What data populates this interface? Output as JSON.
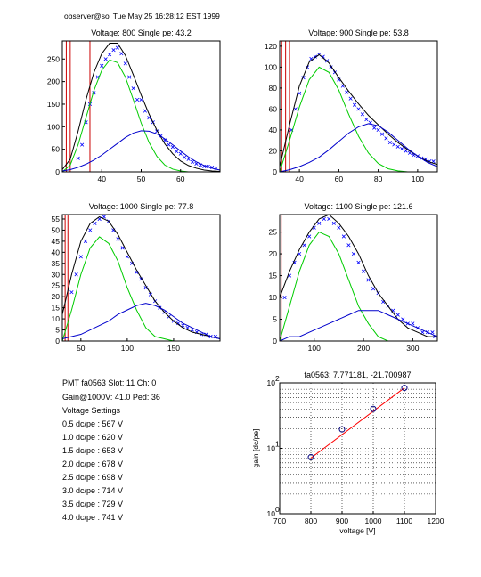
{
  "header": "observer@sol  Tue May 25 16:28:12 EST 1999",
  "colors": {
    "data": "#0000ff",
    "fit_total": "#000000",
    "fit_single": "#00cc00",
    "fit_double": "#0000cc",
    "pedestal": "#cc0000",
    "gain_line": "#ff0000",
    "gain_points": "#000080"
  },
  "chart_data": [
    {
      "type": "scatter",
      "title": "Voltage: 800 Single pe: 43.2",
      "xlim": [
        30,
        70
      ],
      "ylim": [
        0,
        290
      ],
      "xticks": [
        40,
        50,
        60
      ],
      "yticks": [
        0,
        50,
        100,
        150,
        200,
        250
      ],
      "pedestal_x": [
        31,
        32,
        37
      ],
      "series": [
        {
          "name": "",
          "style": "data",
          "x": [
            34,
            35,
            36,
            37,
            38,
            39,
            40,
            41,
            42,
            43,
            44,
            45,
            46,
            47,
            48,
            49,
            50,
            51,
            52,
            53,
            54,
            55,
            56,
            57,
            58,
            59,
            60,
            61,
            62,
            63,
            64,
            65,
            66,
            67,
            68,
            69
          ],
          "y": [
            30,
            60,
            110,
            150,
            175,
            210,
            235,
            250,
            260,
            270,
            275,
            262,
            240,
            210,
            185,
            160,
            160,
            135,
            120,
            110,
            90,
            80,
            70,
            60,
            55,
            45,
            40,
            32,
            28,
            22,
            18,
            15,
            12,
            12,
            10,
            8
          ]
        },
        {
          "name": "",
          "style": "fit_total",
          "x": [
            30,
            32,
            34,
            36,
            38,
            40,
            42,
            44,
            46,
            48,
            50,
            52,
            54,
            56,
            58,
            60,
            62,
            64,
            66,
            68,
            70
          ],
          "y": [
            5,
            28,
            90,
            160,
            220,
            262,
            285,
            285,
            258,
            215,
            170,
            128,
            92,
            62,
            40,
            24,
            14,
            8,
            4,
            2,
            1
          ]
        },
        {
          "name": "",
          "style": "fit_single",
          "x": [
            30,
            32,
            34,
            36,
            38,
            40,
            42,
            44,
            46,
            48,
            50,
            52,
            54,
            56,
            58,
            60,
            62,
            64,
            66,
            68,
            70
          ],
          "y": [
            0,
            15,
            60,
            120,
            180,
            225,
            248,
            242,
            210,
            160,
            108,
            65,
            34,
            15,
            6,
            2,
            0,
            0,
            0,
            0,
            0
          ]
        },
        {
          "name": "",
          "style": "fit_double",
          "x": [
            30,
            32,
            34,
            36,
            38,
            40,
            42,
            44,
            46,
            48,
            50,
            52,
            54,
            56,
            58,
            60,
            62,
            64,
            66,
            68,
            70
          ],
          "y": [
            2,
            5,
            10,
            17,
            26,
            37,
            50,
            63,
            76,
            86,
            91,
            90,
            84,
            73,
            60,
            46,
            33,
            22,
            14,
            8,
            4
          ]
        }
      ]
    },
    {
      "type": "scatter",
      "title": "Voltage: 900 Single pe: 53.8",
      "xlim": [
        30,
        110
      ],
      "ylim": [
        0,
        125
      ],
      "xticks": [
        40,
        60,
        80,
        100
      ],
      "yticks": [
        0,
        20,
        40,
        60,
        80,
        100,
        120
      ],
      "pedestal_x": [
        31,
        33,
        35
      ],
      "series": [
        {
          "name": "",
          "style": "data",
          "x": [
            36,
            38,
            40,
            42,
            44,
            46,
            48,
            50,
            52,
            54,
            56,
            58,
            60,
            62,
            64,
            66,
            68,
            70,
            72,
            74,
            76,
            78,
            80,
            82,
            84,
            86,
            88,
            90,
            92,
            94,
            96,
            98,
            100,
            102,
            104,
            106,
            108
          ],
          "y": [
            40,
            60,
            75,
            90,
            100,
            108,
            110,
            112,
            110,
            106,
            100,
            95,
            88,
            82,
            76,
            70,
            64,
            60,
            55,
            50,
            47,
            42,
            40,
            36,
            32,
            28,
            26,
            24,
            22,
            20,
            18,
            16,
            15,
            13,
            12,
            10,
            10
          ]
        },
        {
          "name": "",
          "style": "fit_total",
          "x": [
            30,
            35,
            40,
            45,
            50,
            55,
            60,
            65,
            70,
            75,
            80,
            85,
            90,
            95,
            100,
            105,
            110
          ],
          "y": [
            5,
            45,
            82,
            105,
            112,
            104,
            90,
            77,
            65,
            54,
            45,
            36,
            28,
            21,
            15,
            10,
            7
          ]
        },
        {
          "name": "",
          "style": "fit_single",
          "x": [
            30,
            35,
            40,
            45,
            50,
            55,
            60,
            65,
            70,
            75,
            80,
            85,
            90,
            95,
            100,
            105,
            110
          ],
          "y": [
            0,
            30,
            62,
            88,
            100,
            95,
            78,
            55,
            34,
            18,
            8,
            3,
            1,
            0,
            0,
            0,
            0
          ]
        },
        {
          "name": "",
          "style": "fit_double",
          "x": [
            30,
            35,
            40,
            45,
            50,
            55,
            60,
            65,
            70,
            75,
            80,
            85,
            90,
            95,
            100,
            105,
            110
          ],
          "y": [
            0,
            2,
            5,
            9,
            14,
            21,
            29,
            37,
            43,
            46,
            44,
            38,
            30,
            22,
            15,
            9,
            5
          ]
        }
      ]
    },
    {
      "type": "scatter",
      "title": "Voltage: 1000 Single pe: 77.8",
      "xlim": [
        30,
        200
      ],
      "ylim": [
        0,
        57
      ],
      "xticks": [
        50,
        100,
        150
      ],
      "yticks": [
        0,
        5,
        10,
        15,
        20,
        25,
        30,
        35,
        40,
        45,
        50,
        55
      ],
      "pedestal_x": [
        33,
        36
      ],
      "series": [
        {
          "name": "",
          "style": "data",
          "x": [
            40,
            45,
            50,
            55,
            60,
            65,
            70,
            75,
            80,
            85,
            90,
            95,
            100,
            105,
            110,
            115,
            120,
            125,
            130,
            135,
            140,
            145,
            150,
            155,
            160,
            165,
            170,
            175,
            180,
            185,
            190,
            195
          ],
          "y": [
            22,
            30,
            38,
            45,
            50,
            53,
            55,
            56,
            54,
            50,
            46,
            42,
            38,
            35,
            31,
            28,
            24,
            21,
            18,
            15,
            13,
            11,
            9,
            8,
            7,
            6,
            5,
            4,
            3,
            3,
            2,
            2
          ]
        },
        {
          "name": "",
          "style": "fit_total",
          "x": [
            30,
            40,
            50,
            60,
            70,
            80,
            90,
            100,
            110,
            120,
            130,
            140,
            150,
            160,
            170,
            180,
            190,
            200
          ],
          "y": [
            12,
            30,
            45,
            53,
            56,
            54,
            48,
            40,
            32,
            25,
            18,
            13,
            9,
            6,
            4,
            3,
            2,
            1
          ]
        },
        {
          "name": "",
          "style": "fit_single",
          "x": [
            30,
            40,
            50,
            60,
            70,
            80,
            90,
            100,
            110,
            120,
            130,
            140,
            150,
            160,
            170,
            180,
            190,
            200
          ],
          "y": [
            0,
            14,
            30,
            42,
            47,
            44,
            36,
            24,
            14,
            6,
            2,
            1,
            0,
            0,
            0,
            0,
            0,
            0
          ]
        },
        {
          "name": "",
          "style": "fit_double",
          "x": [
            30,
            40,
            50,
            60,
            70,
            80,
            90,
            100,
            110,
            120,
            130,
            140,
            150,
            160,
            170,
            180,
            190,
            200
          ],
          "y": [
            1,
            2,
            3,
            5,
            7,
            9,
            12,
            14,
            16,
            17,
            16,
            14,
            11,
            8,
            6,
            4,
            2,
            1
          ]
        }
      ]
    },
    {
      "type": "scatter",
      "title": "Voltage: 1100 Single pe: 121.6",
      "xlim": [
        30,
        350
      ],
      "ylim": [
        0,
        29
      ],
      "xticks": [
        100,
        200,
        300
      ],
      "yticks": [
        0,
        5,
        10,
        15,
        20,
        25
      ],
      "pedestal_x": [
        33
      ],
      "series": [
        {
          "name": "",
          "style": "data",
          "x": [
            40,
            50,
            60,
            70,
            80,
            90,
            100,
            110,
            120,
            130,
            140,
            150,
            160,
            170,
            180,
            190,
            200,
            210,
            220,
            230,
            240,
            250,
            260,
            270,
            280,
            290,
            300,
            310,
            320,
            330,
            340,
            345
          ],
          "y": [
            10,
            15,
            18,
            20,
            22,
            24,
            26,
            27,
            28,
            28,
            27,
            26,
            24,
            22,
            20,
            18,
            16,
            14,
            12,
            11,
            9,
            8,
            7,
            6,
            5,
            4,
            4,
            3,
            2,
            2,
            2,
            1
          ]
        },
        {
          "name": "",
          "style": "fit_total",
          "x": [
            30,
            50,
            70,
            90,
            110,
            130,
            150,
            170,
            190,
            210,
            230,
            250,
            270,
            290,
            310,
            330,
            350
          ],
          "y": [
            10,
            16,
            21,
            25,
            28,
            29,
            27,
            24,
            20,
            15,
            11,
            8,
            5,
            3,
            2,
            1,
            1
          ]
        },
        {
          "name": "",
          "style": "fit_single",
          "x": [
            30,
            50,
            70,
            90,
            110,
            130,
            150,
            170,
            190,
            210,
            230,
            250,
            270,
            290,
            310,
            330,
            350
          ],
          "y": [
            0,
            8,
            16,
            22,
            25,
            24,
            20,
            14,
            8,
            4,
            1,
            0,
            0,
            0,
            0,
            0,
            0
          ]
        },
        {
          "name": "",
          "style": "fit_double",
          "x": [
            30,
            50,
            70,
            90,
            110,
            130,
            150,
            170,
            190,
            210,
            230,
            250,
            270,
            290,
            310,
            330,
            350
          ],
          "y": [
            0,
            1,
            1,
            2,
            3,
            4,
            5,
            6,
            7,
            7,
            7,
            6,
            5,
            4,
            3,
            2,
            1
          ]
        }
      ]
    },
    {
      "type": "line",
      "title": "fa0563: 7.771181, -21.700987",
      "xlabel": "voltage [V]",
      "ylabel": "gain [dc/pe]",
      "scale_y": "log",
      "xlim": [
        700,
        1200
      ],
      "ylim": [
        1,
        100
      ],
      "xticks": [
        700,
        800,
        900,
        1000,
        1100,
        1200
      ],
      "yticks": [
        1,
        10,
        100
      ],
      "yticklabels": [
        "10",
        "10",
        "10"
      ],
      "ytick_exponents": [
        "0",
        "1",
        "2"
      ],
      "grid": true,
      "series": [
        {
          "name": "",
          "style": "fit",
          "x": [
            800,
            1100
          ],
          "y": [
            7.1,
            84.0
          ]
        },
        {
          "name": "",
          "style": "points",
          "x": [
            800,
            900,
            1000,
            1100
          ],
          "y": [
            7.3,
            19.5,
            40.0,
            84.0
          ]
        }
      ]
    }
  ],
  "info": {
    "pmt_line": "PMT fa0563 Slot: 11 Ch: 0",
    "gain_line": "Gain@1000V: 41.0 Ped: 36",
    "settings_heading": "Voltage Settings",
    "settings": [
      "0.5 dc/pe : 567 V",
      "1.0 dc/pe : 620 V",
      "1.5 dc/pe : 653 V",
      "2.0 dc/pe : 678 V",
      "2.5 dc/pe : 698 V",
      "3.0 dc/pe : 714 V",
      "3.5 dc/pe : 729 V",
      "4.0 dc/pe : 741 V"
    ]
  }
}
